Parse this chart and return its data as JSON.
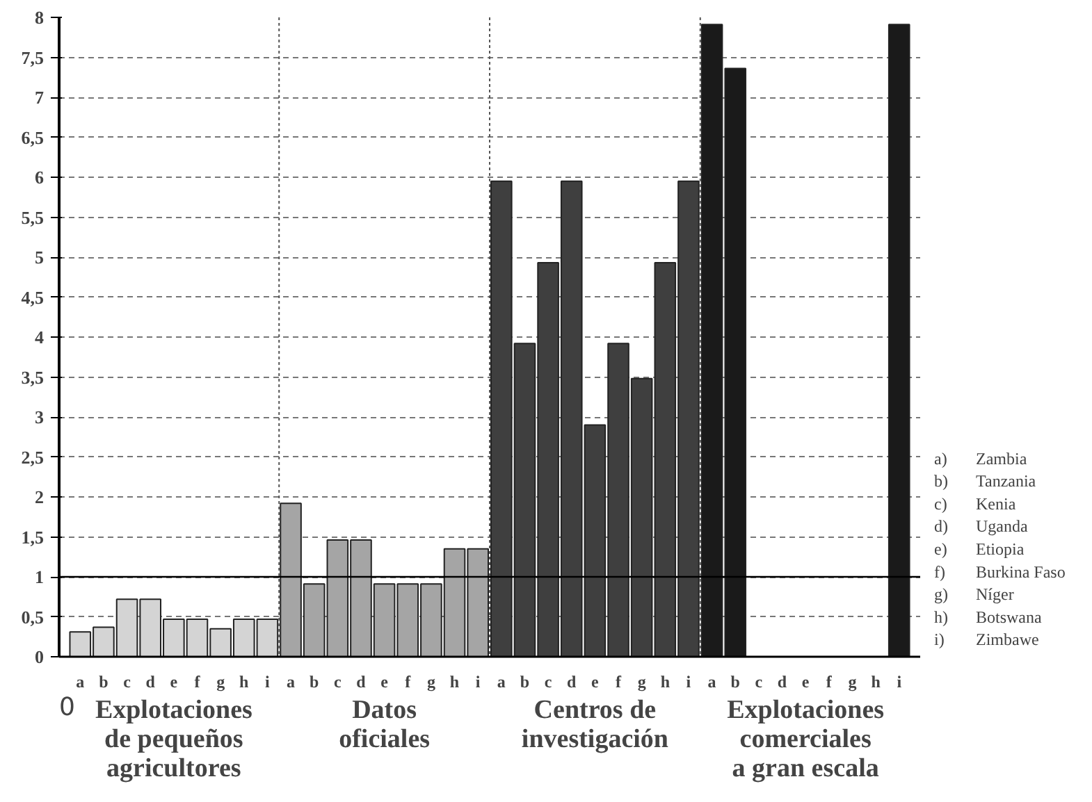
{
  "chart_data": {
    "type": "bar",
    "categories": [
      "a",
      "b",
      "c",
      "d",
      "e",
      "f",
      "g",
      "h",
      "i",
      "a",
      "b",
      "c",
      "d",
      "e",
      "f",
      "g",
      "h",
      "i",
      "a",
      "b",
      "c",
      "d",
      "e",
      "f",
      "g",
      "h",
      "i",
      "a",
      "b",
      "c",
      "d",
      "e",
      "f",
      "g",
      "h",
      "i"
    ],
    "values": [
      0.31,
      0.37,
      0.72,
      0.72,
      0.47,
      0.47,
      0.35,
      0.47,
      0.47,
      1.92,
      0.91,
      1.46,
      1.46,
      0.91,
      0.91,
      0.91,
      1.35,
      1.35,
      5.95,
      3.92,
      4.93,
      5.95,
      2.9,
      3.92,
      3.48,
      4.93,
      5.95,
      7.91,
      7.36,
      0,
      0,
      0,
      0,
      0,
      0,
      7.91
    ],
    "colors": [
      "#d4d4d4",
      "#d4d4d4",
      "#d4d4d4",
      "#d4d4d4",
      "#d4d4d4",
      "#d4d4d4",
      "#d4d4d4",
      "#d4d4d4",
      "#d4d4d4",
      "#a5a5a5",
      "#a5a5a5",
      "#a5a5a5",
      "#a5a5a5",
      "#a5a5a5",
      "#a5a5a5",
      "#a5a5a5",
      "#a5a5a5",
      "#a5a5a5",
      "#3f3f3f",
      "#3f3f3f",
      "#3f3f3f",
      "#3f3f3f",
      "#3f3f3f",
      "#3f3f3f",
      "#3f3f3f",
      "#3f3f3f",
      "#3f3f3f",
      "#1a1a1a",
      "#1a1a1a",
      "#1a1a1a",
      "#1a1a1a",
      "#1a1a1a",
      "#1a1a1a",
      "#1a1a1a",
      "#1a1a1a",
      "#1a1a1a"
    ],
    "ylim": [
      0,
      8
    ],
    "yticks": [
      0,
      {
        "value": 0.5,
        "label": "0,5"
      },
      1,
      {
        "value": 1.5,
        "label": "1,5"
      },
      2,
      {
        "value": 2.5,
        "label": "2,5"
      },
      3,
      {
        "value": 3.5,
        "label": "3,5"
      },
      4,
      {
        "value": 4.5,
        "label": "4,5"
      },
      5,
      {
        "value": 5.5,
        "label": "5,5"
      },
      6,
      {
        "value": 6.5,
        "label": "6,5"
      },
      7,
      {
        "value": 7.5,
        "label": "7,5"
      },
      8
    ],
    "grid": "y",
    "ref_lines": [
      {
        "axis": "y",
        "value": 1,
        "color": "#000000",
        "line_style": "solid"
      }
    ],
    "annotations": [
      "Explotaciones\nde pequeños\nagricultores",
      "Datos\noficiales",
      "Centros de\ninvestigación",
      "Explotaciones\ncomerciales\na gran escala",
      "0",
      "a)\tZambia",
      "b)\tTanzania",
      "c)\tKenia",
      "d)\tUganda",
      "e)\tEtiopia",
      "f)\tBurkina Faso",
      "g)\tNíger",
      "h)\tBotswana",
      "i)\tZimbawe"
    ]
  }
}
